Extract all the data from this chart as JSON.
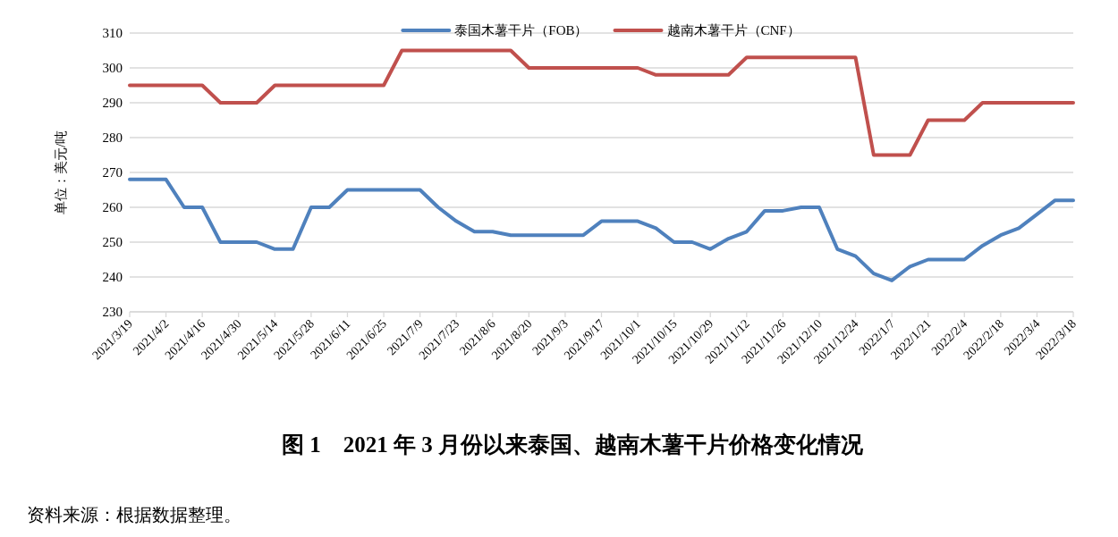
{
  "chart_data": {
    "type": "line",
    "title": "图 1　2021 年 3 月份以来泰国、越南木薯干片价格变化情况",
    "ylabel": "单位：美元/吨",
    "annotations": [
      "资料来源：根据数据整理。"
    ],
    "categories": [
      "2021/3/19",
      null,
      "2021/4/2",
      null,
      "2021/4/16",
      null,
      "2021/4/30",
      null,
      "2021/5/14",
      null,
      "2021/5/28",
      null,
      "2021/6/11",
      null,
      "2021/6/25",
      null,
      "2021/7/9",
      null,
      "2021/7/23",
      null,
      "2021/8/6",
      null,
      "2021/8/20",
      null,
      "2021/9/3",
      null,
      "2021/9/17",
      null,
      "2021/10/1",
      null,
      "2021/10/15",
      null,
      "2021/10/29",
      null,
      "2021/11/12",
      null,
      "2021/11/26",
      null,
      "2021/12/10",
      null,
      "2021/12/24",
      null,
      "2022/1/7",
      null,
      "2022/1/21",
      null,
      "2022/2/4",
      null,
      "2022/2/18",
      null,
      "2022/3/4",
      null,
      "2022/3/18"
    ],
    "series": [
      {
        "name": "泰国木薯干片（FOB）",
        "color": "#4f81bd",
        "values": [
          268,
          268,
          268,
          260,
          260,
          250,
          250,
          250,
          248,
          248,
          260,
          260,
          265,
          265,
          265,
          265,
          265,
          260,
          256,
          253,
          253,
          252,
          252,
          252,
          252,
          252,
          256,
          256,
          256,
          254,
          250,
          250,
          248,
          251,
          253,
          259,
          259,
          260,
          260,
          248,
          246,
          241,
          239,
          243,
          245,
          245,
          245,
          249,
          252,
          254,
          258,
          262,
          262
        ]
      },
      {
        "name": "越南木薯干片（CNF）",
        "color": "#c0504d",
        "values": [
          295,
          295,
          295,
          295,
          295,
          290,
          290,
          290,
          295,
          295,
          295,
          295,
          295,
          295,
          295,
          305,
          305,
          305,
          305,
          305,
          305,
          305,
          300,
          300,
          300,
          300,
          300,
          300,
          300,
          298,
          298,
          298,
          298,
          298,
          303,
          303,
          303,
          303,
          303,
          303,
          303,
          275,
          275,
          275,
          285,
          285,
          285,
          290,
          290,
          290,
          290,
          290,
          290
        ]
      }
    ],
    "ylim": [
      230,
      310
    ],
    "yticks": [
      230,
      240,
      250,
      260,
      270,
      280,
      290,
      300,
      310
    ],
    "grid": "y",
    "legend": "top",
    "marker": "none",
    "line_style": "solid"
  }
}
